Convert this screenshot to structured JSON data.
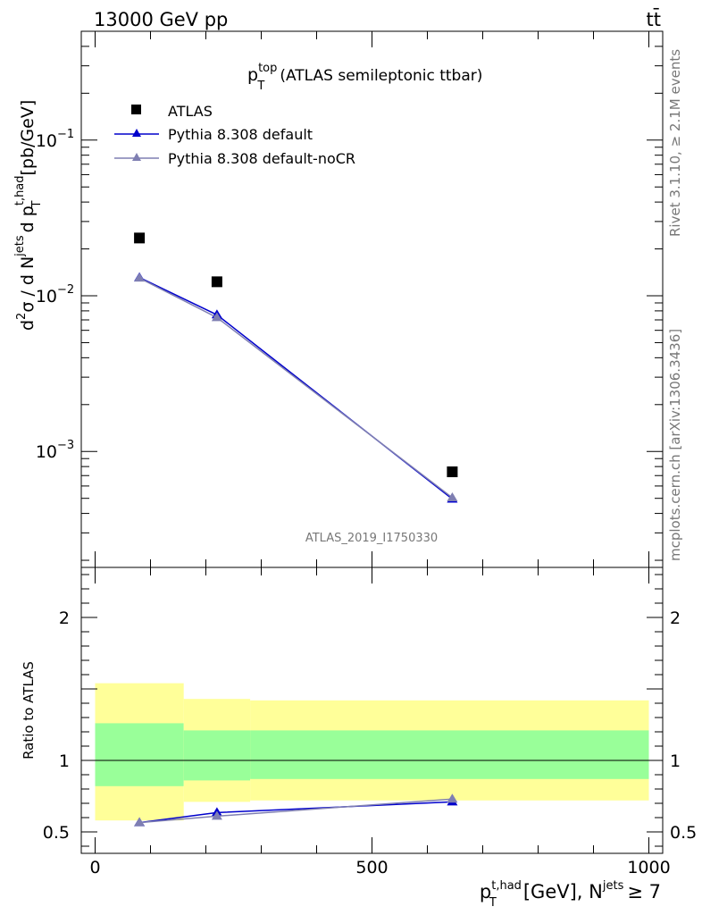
{
  "header": {
    "energy_label": "13000 GeV pp",
    "process_label": "tt̄"
  },
  "side_text": {
    "rivet": "Rivet 3.1.10, ≥ 2.1M events",
    "mcplots": "mcplots.cern.ch [arXiv:1306.3436]"
  },
  "analysis_id": "ATLAS_2019_I1750330",
  "chart_data": [
    {
      "panel": "main",
      "type": "line",
      "title": {
        "main": "p",
        "sup": "top",
        "sub": "T",
        "rest": "(ATLAS semileptonic ttbar)"
      },
      "ylabel": {
        "p1": "d",
        "p2": "σ / d N",
        "p3": "d p",
        "p4": "[pb/GeV]",
        "sup1": "2",
        "sup2": "jets",
        "sup3": "t,had",
        "sub1": "T"
      },
      "yscale": "log",
      "ylim": [
        0.00018,
        0.5
      ],
      "xlim": [
        -25,
        1025
      ],
      "y_ticks": [
        {
          "value": 0.1,
          "base": "10",
          "exp": "−1"
        },
        {
          "value": 0.01,
          "base": "10",
          "exp": "−2"
        },
        {
          "value": 0.001,
          "base": "10",
          "exp": "−3"
        }
      ],
      "legend": {
        "placement": "top-left",
        "entries": [
          "ATLAS",
          "Pythia 8.308 default",
          "Pythia 8.308 default-noCR"
        ]
      },
      "series": [
        {
          "name": "ATLAS",
          "marker": "square",
          "color": "#000000",
          "x": [
            80,
            220,
            645
          ],
          "y": [
            0.0235,
            0.0123,
            0.00074
          ],
          "x_bins": [
            [
              0,
              160
            ],
            [
              160,
              280
            ],
            [
              280,
              1000
            ]
          ]
        },
        {
          "name": "Pythia 8.308 default",
          "marker": "triangle",
          "color": "#0000cc",
          "x": [
            80,
            220,
            645
          ],
          "y": [
            0.0131,
            0.00755,
            0.000495
          ]
        },
        {
          "name": "Pythia 8.308 default-noCR",
          "marker": "triangle",
          "color": "#7f7fb2",
          "x": [
            80,
            220,
            645
          ],
          "y": [
            0.013,
            0.00725,
            0.000505
          ]
        }
      ],
      "grid": false
    },
    {
      "panel": "ratio",
      "type": "line",
      "ylabel": "Ratio to ATLAS",
      "xlabel": {
        "p": "p",
        "sup": "t,had",
        "sub": "T",
        "rest": "[GeV], N",
        "sup2": "jets",
        "tail": "≥ 7"
      },
      "ylim": [
        0.35,
        2.35
      ],
      "xlim": [
        -25,
        1025
      ],
      "x_ticks": [
        {
          "value": 0,
          "label": "0"
        },
        {
          "value": 500,
          "label": "500"
        },
        {
          "value": 1000,
          "label": "1000"
        }
      ],
      "y_ticks": [
        {
          "value": 0.5,
          "label": "0.5"
        },
        {
          "value": 1,
          "label": "1"
        },
        {
          "value": 2,
          "label": "2"
        }
      ],
      "bands": [
        {
          "x": [
            0,
            160
          ],
          "yellow": [
            0.58,
            1.54
          ],
          "green": [
            0.82,
            1.26
          ]
        },
        {
          "x": [
            160,
            280
          ],
          "yellow": [
            0.71,
            1.43
          ],
          "green": [
            0.86,
            1.21
          ]
        },
        {
          "x": [
            280,
            1000
          ],
          "yellow": [
            0.72,
            1.42
          ],
          "green": [
            0.87,
            1.21
          ]
        }
      ],
      "band_colors": {
        "yellow": "#ffff99",
        "green": "#99ff99"
      },
      "series": [
        {
          "name": "Pythia 8.308 default",
          "color": "#0000cc",
          "x": [
            80,
            220,
            645
          ],
          "y": [
            0.565,
            0.635,
            0.71
          ]
        },
        {
          "name": "Pythia 8.308 default-noCR",
          "color": "#7f7fb2",
          "x": [
            80,
            220,
            645
          ],
          "y": [
            0.565,
            0.61,
            0.73
          ]
        }
      ]
    }
  ]
}
